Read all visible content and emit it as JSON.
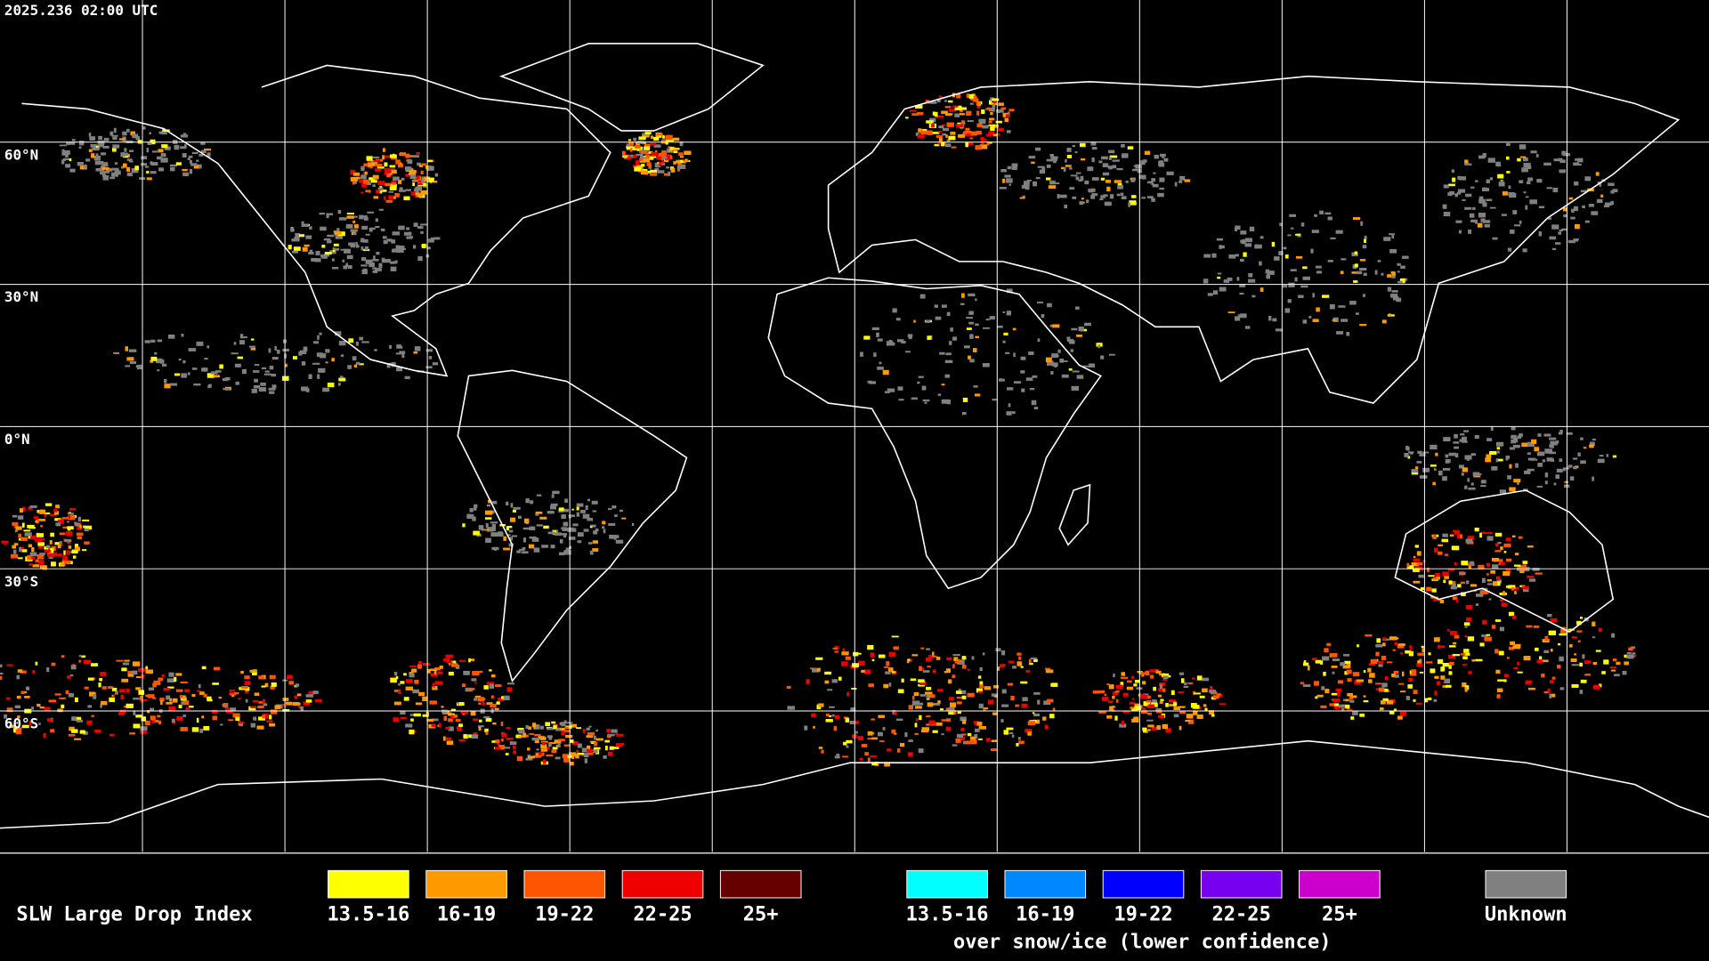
{
  "header": {
    "timestamp": "2025.236 02:00 UTC"
  },
  "map": {
    "latitude_labels": [
      "60°N",
      "30°N",
      "0°N",
      "30°S",
      "60°S"
    ]
  },
  "legend": {
    "title": "SLW Large Drop Index",
    "items": [
      {
        "label": "13.5-16",
        "color": "#ffff00"
      },
      {
        "label": "16-19",
        "color": "#ff9900"
      },
      {
        "label": "19-22",
        "color": "#ff5500"
      },
      {
        "label": "22-25",
        "color": "#ee0000"
      },
      {
        "label": "25+",
        "color": "#660000"
      }
    ],
    "snow_ice_items": [
      {
        "label": "13.5-16",
        "color": "#00ffff"
      },
      {
        "label": "16-19",
        "color": "#0088ff"
      },
      {
        "label": "19-22",
        "color": "#0000ff"
      },
      {
        "label": "22-25",
        "color": "#7700ee"
      },
      {
        "label": "25+",
        "color": "#cc00cc"
      }
    ],
    "snow_ice_caption": "over snow/ice (lower confidence)",
    "unknown": {
      "label": "Unknown",
      "color": "#808080"
    }
  }
}
